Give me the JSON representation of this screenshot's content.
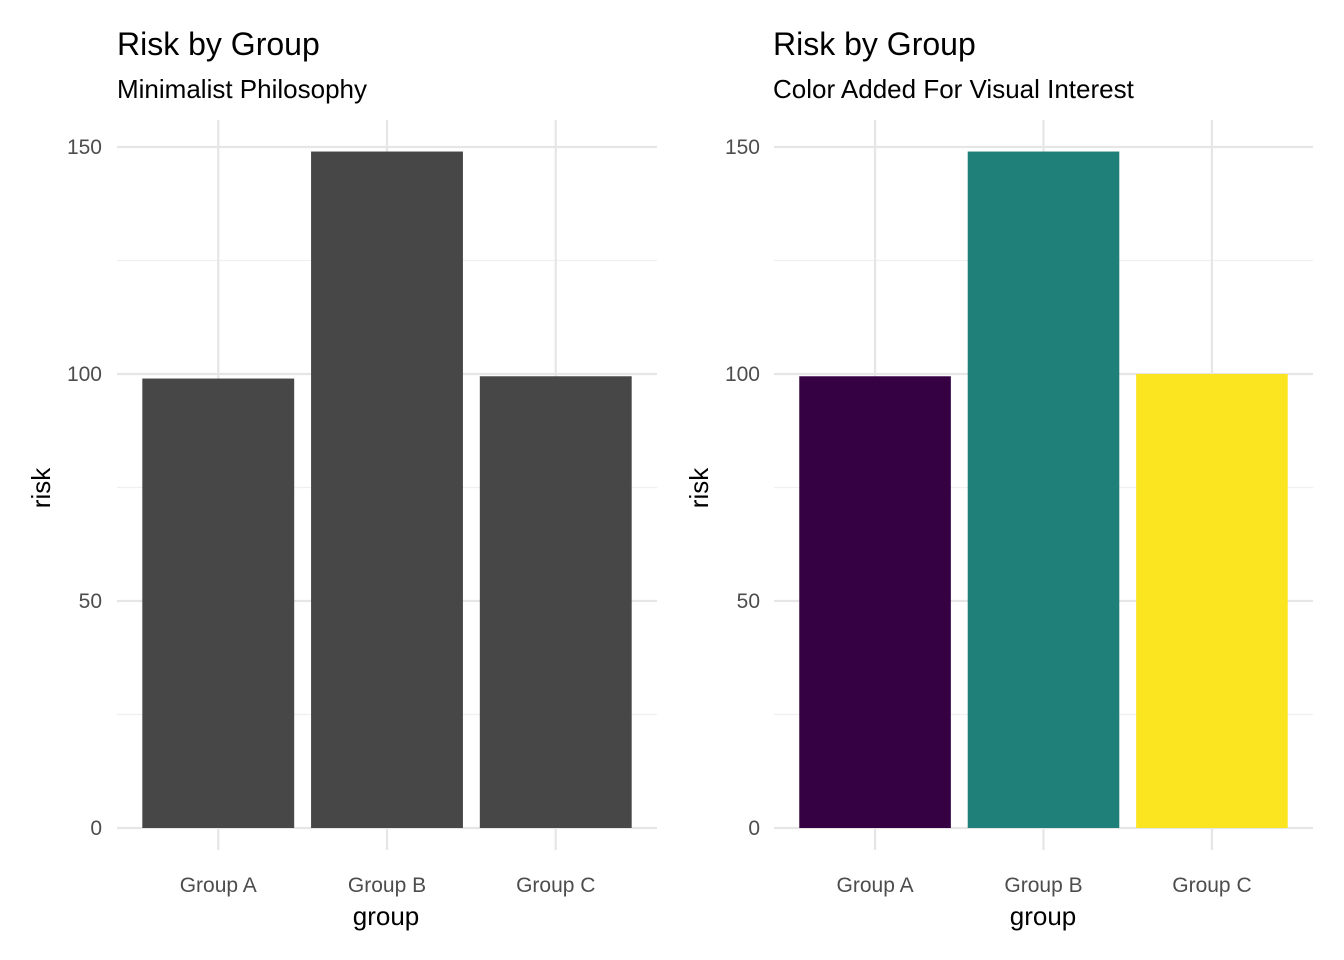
{
  "chart_data": [
    {
      "type": "bar",
      "title": "Risk by Group",
      "subtitle": "Minimalist Philosophy",
      "xlabel": "group",
      "ylabel": "risk",
      "categories": [
        "Group A",
        "Group B",
        "Group C"
      ],
      "values": [
        99,
        149,
        99.5
      ],
      "ylim": [
        0,
        155
      ],
      "yticks": [
        0,
        50,
        100,
        150
      ],
      "ytick_labels": [
        "0",
        "50",
        "100",
        "150"
      ],
      "bar_colors": [
        "#474747",
        "#474747",
        "#474747"
      ],
      "grid": true,
      "legend": "none"
    },
    {
      "type": "bar",
      "title": "Risk by Group",
      "subtitle": "Color Added For Visual Interest",
      "xlabel": "group",
      "ylabel": "risk",
      "categories": [
        "Group A",
        "Group B",
        "Group C"
      ],
      "values": [
        99.5,
        149,
        100
      ],
      "ylim": [
        0,
        155
      ],
      "yticks": [
        0,
        50,
        100,
        150
      ],
      "ytick_labels": [
        "0",
        "50",
        "100",
        "150"
      ],
      "bar_colors": [
        "#360142",
        "#1f807a",
        "#fbe520"
      ],
      "grid": true,
      "legend": "none"
    }
  ]
}
